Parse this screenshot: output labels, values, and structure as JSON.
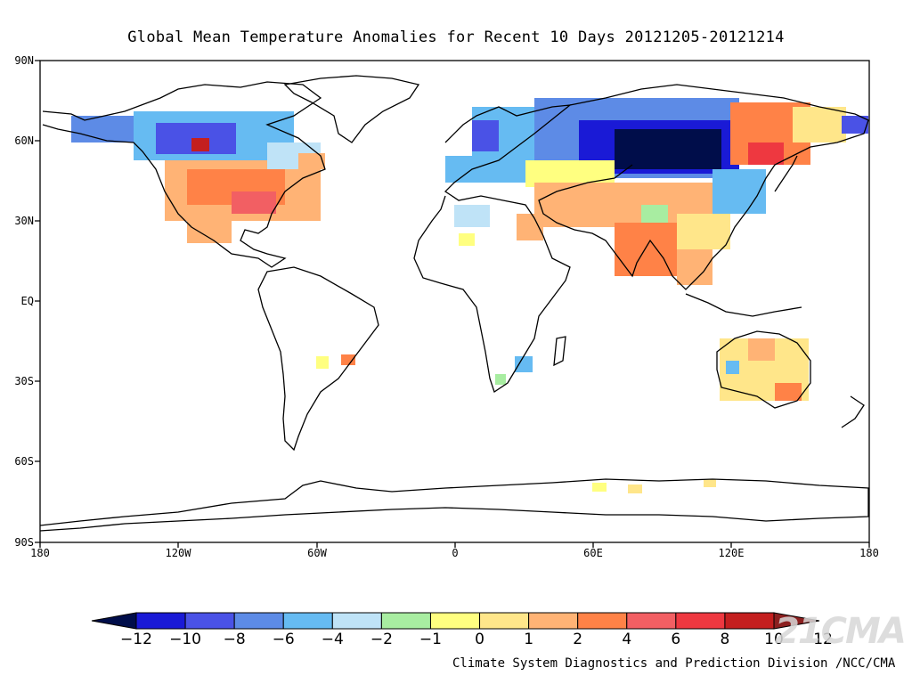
{
  "title": "Global Mean Temperature Anomalies for Recent 10 Days  20121205-20121214",
  "lat_labels": [
    "90N",
    "60N",
    "30N",
    "EQ",
    "30S",
    "60S",
    "90S"
  ],
  "lon_labels": [
    "180",
    "120W",
    "60W",
    "0",
    "60E",
    "120E",
    "180"
  ],
  "colorbar": {
    "labels": [
      "-12",
      "-10",
      "-8",
      "-6",
      "-4",
      "-2",
      "-1",
      "0",
      "1",
      "2",
      "4",
      "6",
      "8",
      "10",
      "12"
    ],
    "colors": [
      "#000d4a",
      "#1a1ad6",
      "#4a52e6",
      "#5d8be6",
      "#66bbf2",
      "#bfe3f7",
      "#a8eda1",
      "#ffff80",
      "#ffe68a",
      "#ffb375",
      "#ff8247",
      "#f25f63",
      "#ee3840",
      "#c41f1f",
      "#8c2020"
    ]
  },
  "credit": "Climate System Diagnostics and Prediction Division /NCC/CMA",
  "watermark": "21CMA"
}
